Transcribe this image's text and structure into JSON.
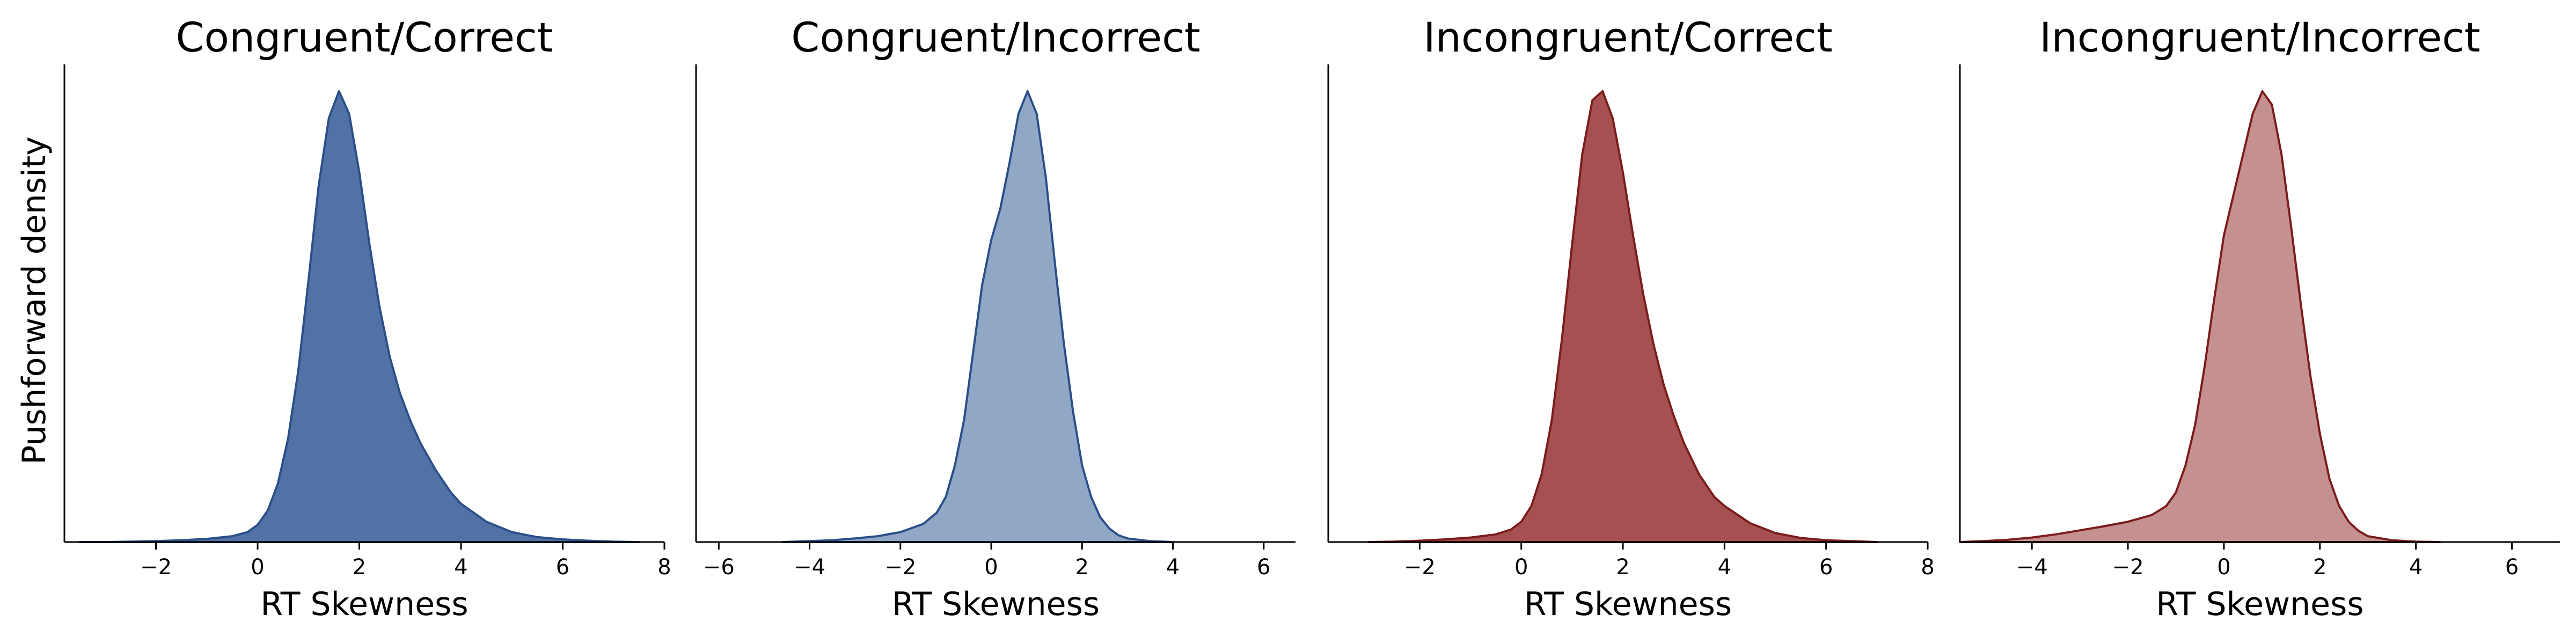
{
  "chart_data": [
    {
      "type": "area",
      "title": "Congruent/Correct",
      "xlabel": "RT Skewness",
      "ylabel": "Pushforward density",
      "xlim": [
        -3.8,
        8.0
      ],
      "ylim": [
        0,
        1.0
      ],
      "xticks": [
        -2,
        0,
        2,
        4,
        6,
        8
      ],
      "fill_color": "#5272a6",
      "edge_color": "#2a4f88",
      "x": [
        -3.5,
        -3.0,
        -2.5,
        -2.0,
        -1.5,
        -1.0,
        -0.5,
        -0.2,
        0.0,
        0.2,
        0.4,
        0.6,
        0.8,
        1.0,
        1.2,
        1.4,
        1.6,
        1.8,
        2.0,
        2.2,
        2.4,
        2.6,
        2.8,
        3.0,
        3.2,
        3.5,
        3.8,
        4.0,
        4.5,
        5.0,
        5.5,
        6.0,
        6.5,
        7.0,
        7.5
      ],
      "y": [
        0.0,
        0.0,
        0.001,
        0.002,
        0.004,
        0.007,
        0.013,
        0.022,
        0.038,
        0.07,
        0.13,
        0.23,
        0.38,
        0.58,
        0.79,
        0.94,
        1.0,
        0.95,
        0.82,
        0.66,
        0.52,
        0.41,
        0.33,
        0.27,
        0.22,
        0.16,
        0.11,
        0.085,
        0.045,
        0.022,
        0.011,
        0.006,
        0.003,
        0.001,
        0.0
      ]
    },
    {
      "type": "area",
      "title": "Congruent/Incorrect",
      "xlabel": "RT Skewness",
      "ylabel": "",
      "xlim": [
        -6.5,
        6.7
      ],
      "ylim": [
        0,
        1.0
      ],
      "xticks": [
        -6,
        -4,
        -2,
        0,
        2,
        4,
        6
      ],
      "fill_color": "#91a7c6",
      "edge_color": "#2a4f88",
      "x": [
        -4.6,
        -4.0,
        -3.5,
        -3.0,
        -2.5,
        -2.0,
        -1.5,
        -1.2,
        -1.0,
        -0.8,
        -0.6,
        -0.4,
        -0.2,
        0.0,
        0.2,
        0.4,
        0.6,
        0.8,
        1.0,
        1.2,
        1.4,
        1.6,
        1.8,
        2.0,
        2.2,
        2.4,
        2.6,
        2.8,
        3.0,
        3.5,
        4.0
      ],
      "y": [
        0.0,
        0.002,
        0.004,
        0.008,
        0.013,
        0.022,
        0.04,
        0.065,
        0.1,
        0.17,
        0.27,
        0.42,
        0.57,
        0.67,
        0.74,
        0.84,
        0.95,
        1.0,
        0.95,
        0.81,
        0.62,
        0.44,
        0.29,
        0.17,
        0.1,
        0.055,
        0.03,
        0.015,
        0.008,
        0.002,
        0.0
      ]
    },
    {
      "type": "area",
      "title": "Incongruent/Correct",
      "xlabel": "RT Skewness",
      "ylabel": "",
      "xlim": [
        -3.8,
        8.0
      ],
      "ylim": [
        0,
        1.0
      ],
      "xticks": [
        -2,
        0,
        2,
        4,
        6,
        8
      ],
      "fill_color": "#a55151",
      "edge_color": "#7b1c1c",
      "x": [
        -3.0,
        -2.5,
        -2.0,
        -1.5,
        -1.0,
        -0.5,
        -0.2,
        0.0,
        0.2,
        0.4,
        0.6,
        0.8,
        1.0,
        1.2,
        1.4,
        1.6,
        1.8,
        2.0,
        2.2,
        2.4,
        2.6,
        2.8,
        3.0,
        3.2,
        3.5,
        3.8,
        4.0,
        4.5,
        5.0,
        5.5,
        6.0,
        6.5,
        7.0
      ],
      "y": [
        0.0,
        0.001,
        0.003,
        0.006,
        0.01,
        0.017,
        0.028,
        0.045,
        0.08,
        0.15,
        0.27,
        0.45,
        0.66,
        0.86,
        0.98,
        1.0,
        0.94,
        0.82,
        0.68,
        0.55,
        0.44,
        0.35,
        0.28,
        0.22,
        0.15,
        0.1,
        0.08,
        0.042,
        0.02,
        0.009,
        0.004,
        0.002,
        0.0
      ]
    },
    {
      "type": "area",
      "title": "Incongruent/Incorrect",
      "xlabel": "RT Skewness",
      "ylabel": "",
      "xlim": [
        -5.5,
        7.0
      ],
      "ylim": [
        0,
        1.0
      ],
      "xticks": [
        -4,
        -2,
        0,
        2,
        4,
        6
      ],
      "fill_color": "#c59090",
      "edge_color": "#7b1c1c",
      "x": [
        -5.5,
        -5.0,
        -4.5,
        -4.0,
        -3.5,
        -3.0,
        -2.5,
        -2.0,
        -1.5,
        -1.2,
        -1.0,
        -0.8,
        -0.6,
        -0.4,
        -0.2,
        0.0,
        0.2,
        0.4,
        0.6,
        0.8,
        1.0,
        1.2,
        1.4,
        1.6,
        1.8,
        2.0,
        2.2,
        2.4,
        2.6,
        2.8,
        3.0,
        3.5,
        4.0,
        4.5
      ],
      "y": [
        0.0,
        0.002,
        0.005,
        0.01,
        0.017,
        0.026,
        0.035,
        0.045,
        0.06,
        0.08,
        0.11,
        0.17,
        0.26,
        0.39,
        0.54,
        0.68,
        0.77,
        0.86,
        0.95,
        1.0,
        0.97,
        0.86,
        0.7,
        0.53,
        0.37,
        0.24,
        0.14,
        0.08,
        0.045,
        0.025,
        0.013,
        0.004,
        0.001,
        0.0
      ]
    }
  ]
}
